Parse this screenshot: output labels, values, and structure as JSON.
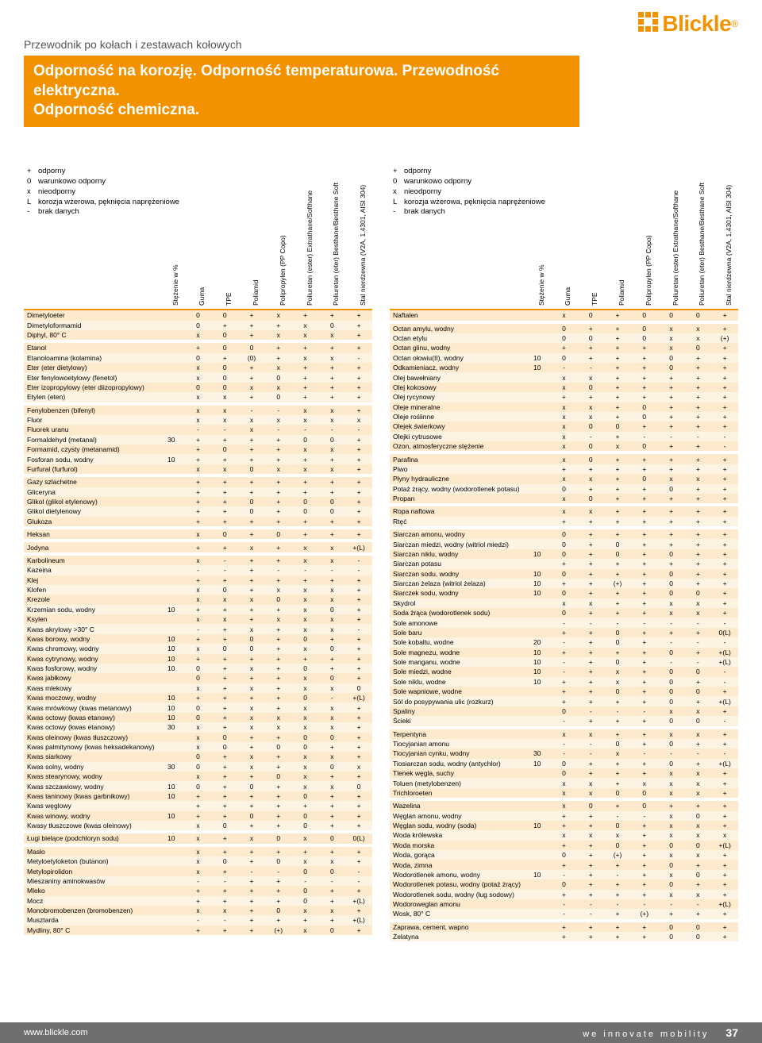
{
  "brand": {
    "name": "Blickle"
  },
  "breadcrumb": "Przewodnik po kołach i zestawach kołowych",
  "title1": "Odporność na korozję. Odporność temperaturowa. Przewodność elektryczna.",
  "title2": "Odporność chemiczna.",
  "legend": [
    {
      "sym": "+",
      "text": "odporny"
    },
    {
      "sym": "0",
      "text": "warunkowo odporny"
    },
    {
      "sym": "x",
      "text": "nieodporny"
    },
    {
      "sym": "L",
      "text": "korozja wżerowa, pęknięcia naprężeniowe"
    },
    {
      "sym": "-",
      "text": "brak danych"
    }
  ],
  "columns": [
    "Stężenie w %",
    "Guma",
    "TPE",
    "Poliamid",
    "Polipropylen (PP Copo)",
    "Poliuretan (ester) Extrathane/Softhane",
    "Poliuretan (eter) Besthane/Besthane Soft",
    "Stal nierdzewna (V2A, 1.4301, AISI 304)"
  ],
  "leftGroups": [
    [
      [
        "Dimetyloeter",
        "",
        "0",
        "0",
        "+",
        "x",
        "+",
        "+",
        "+"
      ],
      [
        "Dimetyloformamid",
        "",
        "0",
        "+",
        "+",
        "+",
        "x",
        "0",
        "+"
      ],
      [
        "Diphyl, 80° C",
        "",
        "x",
        "0",
        "+",
        "x",
        "x",
        "x",
        "+"
      ]
    ],
    [
      [
        "Etanol",
        "",
        "+",
        "0",
        "0",
        "+",
        "+",
        "+",
        "+"
      ],
      [
        "Etanoloamina (kolamina)",
        "",
        "0",
        "+",
        "(0)",
        "+",
        "x",
        "x",
        "-"
      ],
      [
        "Eter (eter dietylowy)",
        "",
        "x",
        "0",
        "+",
        "x",
        "+",
        "+",
        "+"
      ],
      [
        "Eter fenylowoetylowy (fenetol)",
        "",
        "x",
        "0",
        "+",
        "0",
        "+",
        "+",
        "+"
      ],
      [
        "Eter izopropylowy (eter diizopropylowy)",
        "",
        "0",
        "0",
        "x",
        "x",
        "+",
        "+",
        "+"
      ],
      [
        "Etylen (eten)",
        "",
        "x",
        "x",
        "+",
        "0",
        "+",
        "+",
        "+"
      ]
    ],
    [
      [
        "Fenylobenzen (bifenyl)",
        "",
        "x",
        "x",
        "-",
        "-",
        "x",
        "x",
        "+"
      ],
      [
        "Fluor",
        "",
        "x",
        "x",
        "x",
        "x",
        "x",
        "x",
        "x"
      ],
      [
        "Fluorek uranu",
        "",
        "-",
        "-",
        "x",
        "-",
        "-",
        "-",
        "-"
      ],
      [
        "Formaldehyd (metanal)",
        "30",
        "+",
        "+",
        "+",
        "+",
        "0",
        "0",
        "+"
      ],
      [
        "Formamid, czysty (metanamid)",
        "",
        "+",
        "0",
        "+",
        "+",
        "x",
        "x",
        "+"
      ],
      [
        "Fosforan sodu, wodny",
        "10",
        "+",
        "+",
        "+",
        "+",
        "+",
        "+",
        "+"
      ],
      [
        "Furfural (furfurol)",
        "",
        "x",
        "x",
        "0",
        "x",
        "x",
        "x",
        "+"
      ]
    ],
    [
      [
        "Gazy szlachetne",
        "",
        "+",
        "+",
        "+",
        "+",
        "+",
        "+",
        "+"
      ],
      [
        "Gliceryna",
        "",
        "+",
        "+",
        "+",
        "+",
        "+",
        "+",
        "+"
      ],
      [
        "Glikol (glikol etylenowy)",
        "",
        "+",
        "+",
        "0",
        "+",
        "0",
        "0",
        "+"
      ],
      [
        "Glikol dietylenowy",
        "",
        "+",
        "+",
        "0",
        "+",
        "0",
        "0",
        "+"
      ],
      [
        "Glukoza",
        "",
        "+",
        "+",
        "+",
        "+",
        "+",
        "+",
        "+"
      ]
    ],
    [
      [
        "Heksan",
        "",
        "x",
        "0",
        "+",
        "0",
        "+",
        "+",
        "+"
      ]
    ],
    [
      [
        "Jodyna",
        "",
        "+",
        "+",
        "x",
        "+",
        "x",
        "x",
        "+(L)"
      ]
    ],
    [
      [
        "Karbolineum",
        "",
        "x",
        "-",
        "+",
        "+",
        "x",
        "x",
        "-"
      ],
      [
        "Kazeina",
        "",
        "-",
        "-",
        "+",
        "-",
        "-",
        "-",
        "-"
      ],
      [
        "Klej",
        "",
        "+",
        "+",
        "+",
        "+",
        "+",
        "+",
        "+"
      ],
      [
        "Klofen",
        "",
        "x",
        "0",
        "+",
        "x",
        "x",
        "x",
        "+"
      ],
      [
        "Krezole",
        "",
        "x",
        "x",
        "x",
        "0",
        "x",
        "x",
        "+"
      ],
      [
        "Krzemian sodu, wodny",
        "10",
        "+",
        "+",
        "+",
        "+",
        "x",
        "0",
        "+"
      ],
      [
        "Ksylen",
        "",
        "x",
        "x",
        "+",
        "x",
        "x",
        "x",
        "+"
      ],
      [
        "Kwas akrylowy >30° C",
        "",
        "-",
        "+",
        "x",
        "+",
        "x",
        "x",
        "-"
      ],
      [
        "Kwas borowy, wodny",
        "10",
        "+",
        "+",
        "0",
        "+",
        "0",
        "+",
        "+"
      ],
      [
        "Kwas chromowy, wodny",
        "10",
        "x",
        "0",
        "0",
        "+",
        "x",
        "0",
        "+"
      ],
      [
        "Kwas cytrynowy, wodny",
        "10",
        "+",
        "+",
        "+",
        "+",
        "+",
        "+",
        "+"
      ],
      [
        "Kwas fosforowy, wodny",
        "10",
        "0",
        "+",
        "x",
        "+",
        "0",
        "+",
        "+"
      ],
      [
        "Kwas jabłkowy",
        "",
        "0",
        "+",
        "+",
        "+",
        "x",
        "0",
        "+"
      ],
      [
        "Kwas mlekowy",
        "",
        "x",
        "+",
        "x",
        "+",
        "x",
        "x",
        "0"
      ],
      [
        "Kwas moczowy, wodny",
        "10",
        "+",
        "+",
        "+",
        "+",
        "0",
        "-",
        "+(L)"
      ],
      [
        "Kwas mrówkowy (kwas metanowy)",
        "10",
        "0",
        "+",
        "x",
        "+",
        "x",
        "x",
        "+"
      ],
      [
        "Kwas octowy (kwas etanowy)",
        "10",
        "0",
        "+",
        "x",
        "x",
        "x",
        "x",
        "+"
      ],
      [
        "Kwas octowy (kwas etanowy)",
        "30",
        "x",
        "+",
        "x",
        "x",
        "x",
        "x",
        "+"
      ],
      [
        "Kwas oleinowy (kwas tłuszczowy)",
        "",
        "x",
        "0",
        "+",
        "+",
        "0",
        "0",
        "+"
      ],
      [
        "Kwas palmitynowy (kwas heksadekanowy)",
        "",
        "x",
        "0",
        "+",
        "0",
        "0",
        "+",
        "+"
      ],
      [
        "Kwas siarkowy",
        "",
        "0",
        "+",
        "x",
        "+",
        "x",
        "x",
        "+"
      ],
      [
        "Kwas solny, wodny",
        "30",
        "0",
        "+",
        "x",
        "+",
        "x",
        "0",
        "x"
      ],
      [
        "Kwas stearynowy, wodny",
        "",
        "x",
        "+",
        "+",
        "0",
        "x",
        "+",
        "+"
      ],
      [
        "Kwas szczawiowy, wodny",
        "10",
        "0",
        "+",
        "0",
        "+",
        "x",
        "x",
        "0"
      ],
      [
        "Kwas taninowy (kwas garbnikowy)",
        "10",
        "+",
        "+",
        "+",
        "+",
        "0",
        "+",
        "+"
      ],
      [
        "Kwas węglowy",
        "",
        "+",
        "+",
        "+",
        "+",
        "+",
        "+",
        "+"
      ],
      [
        "Kwas winowy, wodny",
        "10",
        "+",
        "+",
        "0",
        "+",
        "0",
        "+",
        "+"
      ],
      [
        "Kwasy tłuszczowe (kwas oleinowy)",
        "",
        "x",
        "0",
        "+",
        "+",
        "0",
        "+",
        "+"
      ]
    ],
    [
      [
        "Ługi bielące (podchloryn sodu)",
        "10",
        "x",
        "+",
        "x",
        "0",
        "x",
        "0",
        "0(L)"
      ]
    ],
    [
      [
        "Masło",
        "",
        "x",
        "+",
        "+",
        "+",
        "+",
        "+",
        "+"
      ],
      [
        "Metyloetyloketon (butanon)",
        "",
        "x",
        "0",
        "+",
        "0",
        "x",
        "x",
        "+"
      ],
      [
        "Metylopirolidon",
        "",
        "x",
        "+",
        "-",
        "-",
        "0",
        "0",
        "-"
      ],
      [
        "Mieszaniny aminokwasów",
        "",
        "-",
        "-",
        "+",
        "+",
        "-",
        "-",
        "-"
      ],
      [
        "Mleko",
        "",
        "+",
        "+",
        "+",
        "+",
        "0",
        "+",
        "+"
      ],
      [
        "Mocz",
        "",
        "+",
        "+",
        "+",
        "+",
        "0",
        "+",
        "+(L)"
      ],
      [
        "Monobromobenzen (bromobenzen)",
        "",
        "x",
        "x",
        "+",
        "0",
        "x",
        "x",
        "+"
      ],
      [
        "Musztarda",
        "",
        "-",
        "-",
        "+",
        "+",
        "+",
        "+",
        "+(L)"
      ],
      [
        "Mydliny, 80° C",
        "",
        "+",
        "+",
        "+",
        "(+)",
        "x",
        "0",
        "+"
      ]
    ]
  ],
  "rightGroups": [
    [
      [
        "Naftalen",
        "",
        "x",
        "0",
        "+",
        "0",
        "0",
        "0",
        "+"
      ]
    ],
    [
      [
        "Octan amylu, wodny",
        "",
        "0",
        "+",
        "+",
        "0",
        "x",
        "x",
        "+"
      ],
      [
        "Octan etylu",
        "",
        "0",
        "0",
        "+",
        "0",
        "x",
        "x",
        "(+)"
      ],
      [
        "Octan glinu, wodny",
        "",
        "+",
        "+",
        "+",
        "+",
        "x",
        "0",
        "+"
      ],
      [
        "Octan ołowiu(II), wodny",
        "10",
        "0",
        "+",
        "+",
        "+",
        "0",
        "+",
        "+"
      ],
      [
        "Odkamieniacz, wodny",
        "10",
        "-",
        "-",
        "+",
        "+",
        "0",
        "+",
        "+"
      ],
      [
        "Olej bawełniany",
        "",
        "x",
        "x",
        "+",
        "+",
        "+",
        "+",
        "+"
      ],
      [
        "Olej kokosowy",
        "",
        "x",
        "0",
        "+",
        "+",
        "+",
        "+",
        "+"
      ],
      [
        "Olej rycynowy",
        "",
        "+",
        "+",
        "+",
        "+",
        "+",
        "+",
        "+"
      ],
      [
        "Oleje mineralne",
        "",
        "x",
        "x",
        "+",
        "0",
        "+",
        "+",
        "+"
      ],
      [
        "Oleje roślinne",
        "",
        "x",
        "x",
        "+",
        "0",
        "+",
        "+",
        "+"
      ],
      [
        "Olejek świerkowy",
        "",
        "x",
        "0",
        "0",
        "+",
        "+",
        "+",
        "+"
      ],
      [
        "Olejki cytrusowe",
        "",
        "x",
        "-",
        "+",
        "-",
        "-",
        "-",
        "-"
      ],
      [
        "Ozon, atmosferyczne stężenie",
        "",
        "x",
        "0",
        "x",
        "0",
        "+",
        "+",
        "-"
      ]
    ],
    [
      [
        "Parafina",
        "",
        "x",
        "0",
        "+",
        "+",
        "+",
        "+",
        "+"
      ],
      [
        "Piwo",
        "",
        "+",
        "+",
        "+",
        "+",
        "+",
        "+",
        "+"
      ],
      [
        "Płyny hydrauliczne",
        "",
        "x",
        "x",
        "+",
        "0",
        "x",
        "x",
        "+"
      ],
      [
        "Potaż żrący, wodny (wodorotlenek potasu)",
        "",
        "0",
        "+",
        "+",
        "+",
        "0",
        "+",
        "+"
      ],
      [
        "Propan",
        "",
        "x",
        "0",
        "+",
        "+",
        "+",
        "+",
        "+"
      ]
    ],
    [
      [
        "Ropa naftowa",
        "",
        "x",
        "x",
        "+",
        "+",
        "+",
        "+",
        "+"
      ],
      [
        "Rtęć",
        "",
        "+",
        "+",
        "+",
        "+",
        "+",
        "+",
        "+"
      ]
    ],
    [
      [
        "Siarczan amonu, wodny",
        "",
        "0",
        "+",
        "+",
        "+",
        "+",
        "+",
        "+"
      ],
      [
        "Siarczan miedzi, wodny (witriol miedzi)",
        "",
        "0",
        "+",
        "0",
        "+",
        "+",
        "+",
        "+"
      ],
      [
        "Siarczan niklu, wodny",
        "10",
        "0",
        "+",
        "0",
        "+",
        "0",
        "+",
        "+"
      ],
      [
        "Siarczan potasu",
        "",
        "+",
        "+",
        "+",
        "+",
        "+",
        "+",
        "+"
      ],
      [
        "Siarczan sodu, wodny",
        "10",
        "0",
        "+",
        "+",
        "+",
        "0",
        "+",
        "+"
      ],
      [
        "Siarczan żelaza (witriol żelaza)",
        "10",
        "+",
        "+",
        "(+)",
        "+",
        "0",
        "+",
        "+"
      ],
      [
        "Siarczek sodu, wodny",
        "10",
        "0",
        "+",
        "+",
        "+",
        "0",
        "0",
        "+"
      ],
      [
        "Skydrol",
        "",
        "x",
        "x",
        "+",
        "+",
        "x",
        "x",
        "+"
      ],
      [
        "Soda żrąca (wodorotlenek sodu)",
        "",
        "0",
        "+",
        "+",
        "+",
        "x",
        "x",
        "+"
      ],
      [
        "Sole amonowe",
        "",
        "-",
        "-",
        "-",
        "-",
        "-",
        "-",
        "-"
      ],
      [
        "Sole baru",
        "",
        "+",
        "+",
        "0",
        "+",
        "+",
        "+",
        "0(L)"
      ],
      [
        "Sole kobaltu, wodne",
        "20",
        "-",
        "+",
        "0",
        "+",
        "-",
        "-",
        "-"
      ],
      [
        "Sole magnezu, wodne",
        "10",
        "+",
        "+",
        "+",
        "+",
        "0",
        "+",
        "+(L)"
      ],
      [
        "Sole manganu, wodne",
        "10",
        "-",
        "+",
        "0",
        "+",
        "-",
        "-",
        "+(L)"
      ],
      [
        "Sole miedzi, wodne",
        "10",
        "-",
        "+",
        "x",
        "+",
        "0",
        "0",
        "-"
      ],
      [
        "Sole niklu, wodne",
        "10",
        "+",
        "+",
        "x",
        "+",
        "0",
        "+",
        "-"
      ],
      [
        "Sole wapniowe, wodne",
        "",
        "+",
        "+",
        "0",
        "+",
        "0",
        "0",
        "+"
      ],
      [
        "Sól do posypywania ulic (rozkurz)",
        "",
        "+",
        "+",
        "+",
        "+",
        "0",
        "+",
        "+(L)"
      ],
      [
        "Spaliny",
        "",
        "0",
        "-",
        "-",
        "-",
        "x",
        "x",
        "+"
      ],
      [
        "Ścieki",
        "",
        "-",
        "+",
        "+",
        "+",
        "0",
        "0",
        "-"
      ]
    ],
    [
      [
        "Terpentyna",
        "",
        "x",
        "x",
        "+",
        "+",
        "x",
        "x",
        "+"
      ],
      [
        "Tiocyjanian amonu",
        "",
        "-",
        "-",
        "0",
        "+",
        "0",
        "+",
        "+"
      ],
      [
        "Tiocyjanian cynku, wodny",
        "30",
        "-",
        "-",
        "x",
        "-",
        "-",
        "-",
        "-"
      ],
      [
        "Tiosiarczan sodu, wodny (antychlor)",
        "10",
        "0",
        "+",
        "+",
        "+",
        "0",
        "+",
        "+(L)"
      ],
      [
        "Tlenek węgla, suchy",
        "",
        "0",
        "+",
        "+",
        "+",
        "x",
        "x",
        "+"
      ],
      [
        "Toluen (metylobenzen)",
        "",
        "x",
        "x",
        "+",
        "x",
        "x",
        "x",
        "+"
      ],
      [
        "Trichloroeten",
        "",
        "x",
        "x",
        "0",
        "0",
        "x",
        "x",
        "+"
      ]
    ],
    [
      [
        "Wazelina",
        "",
        "x",
        "0",
        "+",
        "0",
        "+",
        "+",
        "+"
      ],
      [
        "Węglan amonu, wodny",
        "",
        "+",
        "+",
        "-",
        "-",
        "x",
        "0",
        "+"
      ],
      [
        "Węglan sodu, wodny (soda)",
        "10",
        "+",
        "+",
        "0",
        "+",
        "x",
        "x",
        "+"
      ],
      [
        "Woda królewska",
        "",
        "x",
        "x",
        "x",
        "+",
        "x",
        "x",
        "x"
      ],
      [
        "Woda morska",
        "",
        "+",
        "+",
        "0",
        "+",
        "0",
        "0",
        "+(L)"
      ],
      [
        "Woda, gorąca",
        "",
        "0",
        "+",
        "(+)",
        "+",
        "x",
        "x",
        "+"
      ],
      [
        "Woda, zimna",
        "",
        "+",
        "+",
        "+",
        "+",
        "0",
        "+",
        "+"
      ],
      [
        "Wodorotlenek amonu, wodny",
        "10",
        "-",
        "+",
        "-",
        "+",
        "x",
        "0",
        "+"
      ],
      [
        "Wodorotlenek potasu, wodny (potaż żrący)",
        "",
        "0",
        "+",
        "+",
        "+",
        "0",
        "+",
        "+"
      ],
      [
        "Wodorotlenek sodu, wodny (ług sodowy)",
        "",
        "+",
        "+",
        "+",
        "+",
        "x",
        "x",
        "+"
      ],
      [
        "Wodoroweglan amonu",
        "",
        "-",
        "-",
        "-",
        "-",
        "-",
        "-",
        "+(L)"
      ],
      [
        "Wosk, 80° C",
        "",
        "-",
        "-",
        "+",
        "(+)",
        "+",
        "+",
        "+"
      ]
    ],
    [
      [
        "Zaprawa, cement, wapno",
        "",
        "+",
        "+",
        "+",
        "+",
        "0",
        "0",
        "+"
      ],
      [
        "Żelatyna",
        "",
        "+",
        "+",
        "+",
        "+",
        "0",
        "0",
        "+"
      ]
    ]
  ],
  "footer": {
    "url": "www.blickle.com",
    "tagline": "we innovate mobility",
    "page": "37"
  }
}
